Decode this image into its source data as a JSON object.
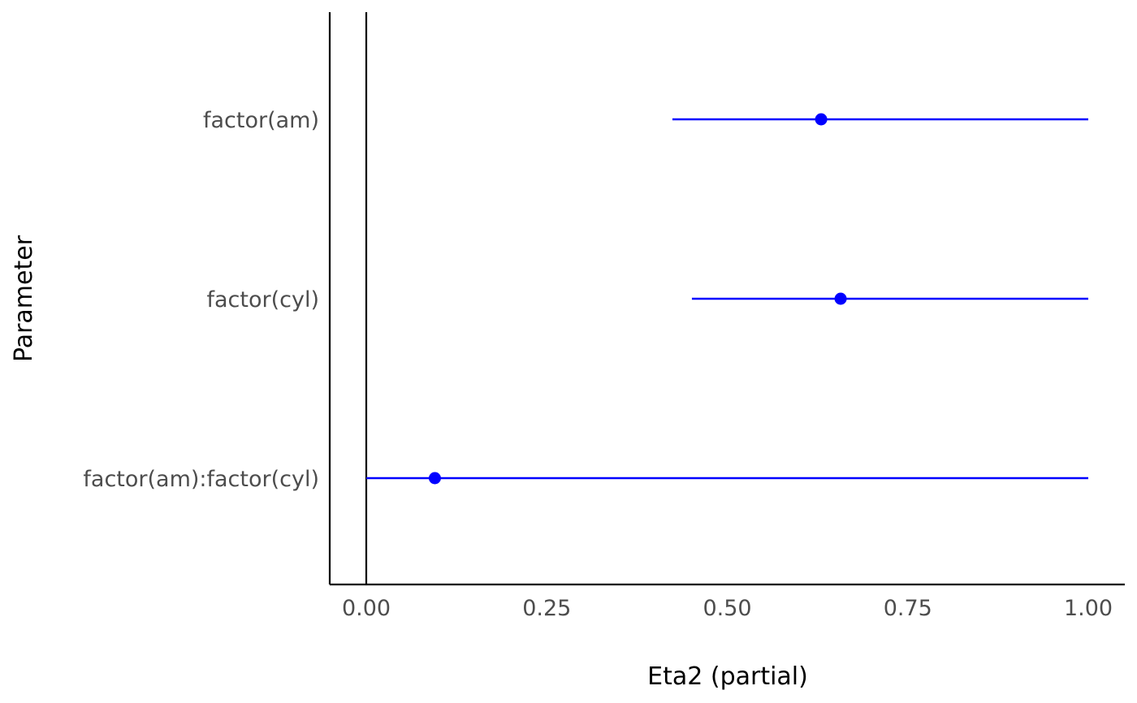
{
  "chart_data": {
    "type": "forest",
    "xlabel": "Eta2 (partial)",
    "ylabel": "Parameter",
    "xlim": [
      -0.05,
      1.05
    ],
    "x_ticks": [
      0.0,
      0.25,
      0.5,
      0.75,
      1.0
    ],
    "x_tick_labels": [
      "0.00",
      "0.25",
      "0.50",
      "0.75",
      "1.00"
    ],
    "reference_line_x": 0.0,
    "grid": false,
    "point_color": "#0000ff",
    "parameters": [
      {
        "label": "factor(am)",
        "estimate": 0.63,
        "ci_low": 0.424,
        "ci_high": 1.0
      },
      {
        "label": "factor(cyl)",
        "estimate": 0.657,
        "ci_low": 0.451,
        "ci_high": 1.0
      },
      {
        "label": "factor(am):factor(cyl)",
        "estimate": 0.095,
        "ci_low": 0.0,
        "ci_high": 1.0
      }
    ]
  }
}
